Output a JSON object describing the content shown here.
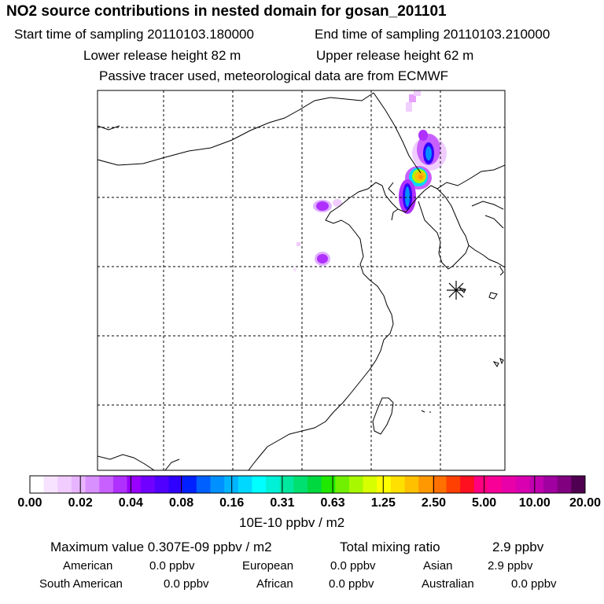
{
  "header": {
    "title": "NO2 source contributions in nested domain for gosan_201101",
    "start_time": "Start time of sampling 20110103.180000",
    "end_time": "End time of sampling 20110103.210000",
    "lower_release": "Lower release height   82 m",
    "upper_release": "Upper release height   62 m",
    "note": "Passive tracer used, meteorological data are from ECMWF"
  },
  "colorbar": {
    "ticks": [
      "0.00",
      "0.02",
      "0.04",
      "0.08",
      "0.16",
      "0.31",
      "0.63",
      "1.25",
      "2.50",
      "5.00",
      "10.00",
      "20.00"
    ],
    "colors": [
      "#ffffff",
      "#f7e2ff",
      "#f0ccff",
      "#e8b4ff",
      "#d890ff",
      "#c860ff",
      "#b030ff",
      "#9800ff",
      "#7000ff",
      "#5000ff",
      "#3000ff",
      "#0020ff",
      "#0060ff",
      "#0090ff",
      "#00b4ff",
      "#00d8ff",
      "#00ffff",
      "#00f0d8",
      "#00e8a0",
      "#00e070",
      "#00d840",
      "#20e800",
      "#70f000",
      "#a8f800",
      "#d8ff00",
      "#ffff00",
      "#ffe000",
      "#ffc000",
      "#ff9800",
      "#ff7000",
      "#ff4000",
      "#ff1020",
      "#ff0080",
      "#f80098",
      "#e800a8",
      "#d800b0",
      "#c000b0",
      "#a000a0",
      "#800080",
      "#500050"
    ],
    "units": "10E-10 ppbv / m2"
  },
  "footer": {
    "max_value": "Maximum value  0.307E-09 ppbv / m2",
    "total_mixing": "Total mixing ratio",
    "total_mixing_value": "2.9 ppbv",
    "regions": [
      {
        "label": "American",
        "value": "0.0 ppbv"
      },
      {
        "label": "European",
        "value": "0.0 ppbv"
      },
      {
        "label": "Asian",
        "value": "2.9 ppbv"
      },
      {
        "label": "South American",
        "value": "0.0 ppbv"
      },
      {
        "label": "African",
        "value": "0.0 ppbv"
      },
      {
        "label": "Australian",
        "value": "0.0 ppbv"
      }
    ]
  },
  "map": {
    "receptor_marker": "gosan-receptor-star"
  }
}
